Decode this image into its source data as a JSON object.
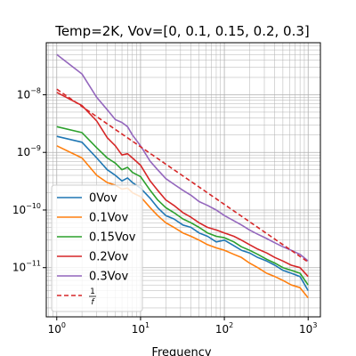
{
  "chart_data": {
    "type": "line",
    "title": "Temp=2K, Vov=[0, 0.1, 0.15, 0.2, 0.3]",
    "xlabel": "Frequency",
    "ylabel": "",
    "xscale": "log",
    "yscale": "log",
    "xlim": [
      0.75,
      1400
    ],
    "ylim": [
      1.4e-12,
      8e-08
    ],
    "grid": "both (major and minor)",
    "legend_position": "lower-left",
    "x_ticks": [
      {
        "value": 1,
        "label": "10^0",
        "base": "10",
        "exp": "0"
      },
      {
        "value": 10,
        "label": "10^1",
        "base": "10",
        "exp": "1"
      },
      {
        "value": 100,
        "label": "10^2",
        "base": "10",
        "exp": "2"
      },
      {
        "value": 1000,
        "label": "10^3",
        "base": "10",
        "exp": "3"
      }
    ],
    "y_ticks": [
      {
        "value": 1e-11,
        "label": "10^-11",
        "base": "10",
        "exp": "−11"
      },
      {
        "value": 1e-10,
        "label": "10^-10",
        "base": "10",
        "exp": "−10"
      },
      {
        "value": 1e-09,
        "label": "10^-9",
        "base": "10",
        "exp": "−9"
      },
      {
        "value": 1e-08,
        "label": "10^-8",
        "base": "10",
        "exp": "−8"
      }
    ],
    "series": [
      {
        "name": "0Vov",
        "color": "#1f77b4",
        "style": "solid",
        "x": [
          1,
          2,
          3,
          4,
          5,
          6,
          7,
          8,
          10,
          13,
          16,
          20,
          25,
          32,
          40,
          50,
          63,
          80,
          100,
          130,
          160,
          200,
          250,
          320,
          400,
          500,
          630,
          800,
          1000
        ],
        "y": [
          1.9e-09,
          1.5e-09,
          8e-10,
          5e-10,
          4e-10,
          3.2e-10,
          3.6e-10,
          3e-10,
          2.4e-10,
          1.6e-10,
          1.1e-10,
          8e-11,
          7e-11,
          5.5e-11,
          5e-11,
          4e-11,
          3.5e-11,
          2.8e-11,
          3e-11,
          2.4e-11,
          2e-11,
          1.8e-11,
          1.5e-11,
          1.3e-11,
          1.1e-11,
          9e-12,
          8e-12,
          7e-12,
          4e-12
        ]
      },
      {
        "name": "0.1Vov",
        "color": "#ff7f0e",
        "style": "solid",
        "x": [
          1,
          2,
          3,
          4,
          5,
          6,
          7,
          8,
          10,
          13,
          16,
          20,
          25,
          32,
          40,
          50,
          63,
          80,
          100,
          130,
          160,
          200,
          250,
          320,
          400,
          500,
          630,
          800,
          1000
        ],
        "y": [
          1.3e-09,
          8e-10,
          4e-10,
          3e-10,
          2.7e-10,
          2.3e-10,
          2.4e-10,
          2e-10,
          1.7e-10,
          1.1e-10,
          8e-11,
          6e-11,
          5e-11,
          4e-11,
          3.5e-11,
          3e-11,
          2.5e-11,
          2.2e-11,
          2e-11,
          1.7e-11,
          1.5e-11,
          1.2e-11,
          1e-11,
          8e-12,
          7e-12,
          6e-12,
          5e-12,
          4.5e-12,
          3e-12
        ]
      },
      {
        "name": "0.15Vov",
        "color": "#2ca02c",
        "style": "solid",
        "x": [
          1,
          2,
          3,
          4,
          5,
          6,
          7,
          8,
          10,
          13,
          16,
          20,
          25,
          32,
          40,
          50,
          63,
          80,
          100,
          130,
          160,
          200,
          250,
          320,
          400,
          500,
          630,
          800,
          1000
        ],
        "y": [
          2.8e-09,
          2.2e-09,
          1.2e-09,
          8e-10,
          6.5e-10,
          5e-10,
          5.5e-10,
          4.5e-10,
          3.8e-10,
          2.2e-10,
          1.5e-10,
          1.1e-10,
          9e-11,
          7e-11,
          6e-11,
          5e-11,
          4e-11,
          3.5e-11,
          3.3e-11,
          2.8e-11,
          2.3e-11,
          2e-11,
          1.7e-11,
          1.4e-11,
          1.2e-11,
          1e-11,
          9e-12,
          8e-12,
          5e-12
        ]
      },
      {
        "name": "0.2Vov",
        "color": "#d62728",
        "style": "solid",
        "x": [
          1,
          2,
          3,
          4,
          5,
          6,
          7,
          8,
          10,
          13,
          16,
          20,
          25,
          32,
          40,
          50,
          63,
          80,
          100,
          130,
          160,
          200,
          250,
          320,
          400,
          500,
          630,
          800,
          1000
        ],
        "y": [
          1.1e-08,
          6.5e-09,
          3.5e-09,
          1.8e-09,
          1.3e-09,
          9e-10,
          9.5e-10,
          8e-10,
          6e-10,
          3.2e-10,
          2.2e-10,
          1.5e-10,
          1.2e-10,
          9e-11,
          7.5e-11,
          6e-11,
          5e-11,
          4.5e-11,
          4e-11,
          3.5e-11,
          3e-11,
          2.5e-11,
          2.1e-11,
          1.8e-11,
          1.5e-11,
          1.3e-11,
          1.1e-11,
          1e-11,
          7e-12
        ]
      },
      {
        "name": "0.3Vov",
        "color": "#9467bd",
        "style": "solid",
        "x": [
          1,
          2,
          3,
          4,
          5,
          6,
          7,
          8,
          10,
          13,
          16,
          20,
          25,
          32,
          40,
          50,
          63,
          80,
          100,
          130,
          160,
          200,
          250,
          320,
          400,
          500,
          630,
          800,
          1000
        ],
        "y": [
          5e-08,
          2.3e-08,
          9e-09,
          5.5e-09,
          3.7e-09,
          3.3e-09,
          2.8e-09,
          2e-09,
          1.3e-09,
          7e-10,
          5e-10,
          3.5e-10,
          2.8e-10,
          2.2e-10,
          1.8e-10,
          1.4e-10,
          1.2e-10,
          1e-10,
          8e-11,
          6.5e-11,
          5.5e-11,
          4.5e-11,
          3.8e-11,
          3.2e-11,
          2.7e-11,
          2.3e-11,
          2e-11,
          1.7e-11,
          1.3e-11
        ]
      },
      {
        "name": "1/f",
        "label_num": "1",
        "label_den": "f",
        "color": "#d62728",
        "style": "dashed",
        "x": [
          1,
          1000
        ],
        "y": [
          1.25e-08,
          1.25e-11
        ]
      }
    ]
  }
}
